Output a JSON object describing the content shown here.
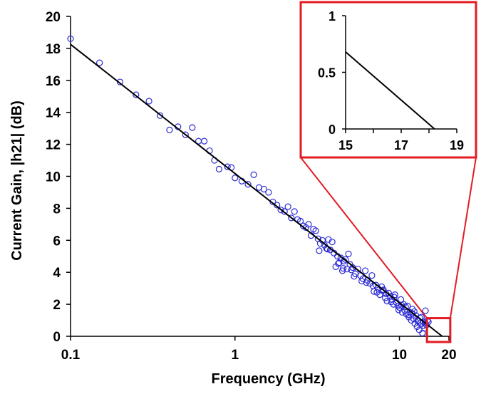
{
  "chart_data": [
    {
      "type": "scatter",
      "xlabel": "Frequency (GHz)",
      "ylabel": "Current Gain, |h21| (dB)",
      "x_scale": "log",
      "xlim": [
        0.1,
        20
      ],
      "ylim": [
        0,
        20
      ],
      "x_ticks": [
        0.1,
        1,
        10,
        20
      ],
      "x_tick_labels": [
        "0.1",
        "1",
        "10",
        "20"
      ],
      "y_ticks": [
        0,
        2,
        4,
        6,
        8,
        10,
        12,
        14,
        16,
        18,
        20
      ],
      "y_tick_labels": [
        "0",
        "2",
        "4",
        "6",
        "8",
        "10",
        "12",
        "14",
        "16",
        "18",
        "20"
      ],
      "grid": false,
      "colors": {
        "measured": "#2b2bd6",
        "fit": "#000000",
        "zoom": "#e31b23"
      },
      "series": [
        {
          "kind": "markers",
          "marker": "open-circle",
          "points": [
            [
              0.1,
              18.6
            ],
            [
              0.15,
              17.1
            ],
            [
              0.2,
              15.9
            ],
            [
              0.25,
              15.1
            ],
            [
              0.3,
              14.7
            ],
            [
              0.35,
              13.8
            ],
            [
              0.4,
              12.9
            ],
            [
              0.45,
              13.1
            ],
            [
              0.5,
              12.6
            ],
            [
              0.55,
              13.05
            ],
            [
              0.6,
              12.2
            ],
            [
              0.65,
              12.2
            ],
            [
              0.7,
              11.6
            ],
            [
              0.75,
              11.0
            ],
            [
              0.8,
              10.45
            ],
            [
              0.9,
              10.6
            ],
            [
              0.95,
              10.55
            ],
            [
              1.0,
              9.9
            ],
            [
              1.1,
              9.7
            ],
            [
              1.2,
              9.5
            ],
            [
              1.3,
              10.1
            ],
            [
              1.4,
              9.3
            ],
            [
              1.5,
              9.2
            ],
            [
              1.6,
              9.0
            ],
            [
              1.7,
              8.4
            ],
            [
              1.8,
              8.2
            ],
            [
              1.9,
              7.9
            ],
            [
              2.0,
              7.8
            ],
            [
              2.1,
              8.1
            ],
            [
              2.2,
              7.4
            ],
            [
              2.3,
              7.8
            ],
            [
              2.4,
              7.3
            ],
            [
              2.5,
              7.2
            ],
            [
              2.6,
              6.9
            ],
            [
              2.7,
              6.8
            ],
            [
              2.8,
              7.0
            ],
            [
              2.9,
              6.3
            ],
            [
              3.0,
              6.7
            ],
            [
              3.1,
              6.6
            ],
            [
              3.2,
              6.1
            ],
            [
              3.3,
              5.8
            ],
            [
              3.4,
              6.0
            ],
            [
              3.5,
              5.7
            ],
            [
              3.6,
              5.5
            ],
            [
              3.7,
              6.05
            ],
            [
              3.8,
              5.4
            ],
            [
              3.9,
              5.9
            ],
            [
              4.0,
              5.2
            ],
            [
              4.1,
              4.35
            ],
            [
              4.2,
              5.0
            ],
            [
              4.3,
              4.6
            ],
            [
              4.4,
              4.9
            ],
            [
              4.5,
              4.1
            ],
            [
              4.6,
              4.7
            ],
            [
              4.7,
              4.8
            ],
            [
              4.8,
              4.2
            ],
            [
              4.9,
              5.15
            ],
            [
              5.0,
              4.5
            ],
            [
              5.2,
              4.3
            ],
            [
              5.4,
              3.9
            ],
            [
              5.6,
              4.2
            ],
            [
              5.8,
              3.8
            ],
            [
              6.0,
              3.6
            ],
            [
              6.2,
              4.1
            ],
            [
              6.4,
              3.5
            ],
            [
              6.6,
              3.3
            ],
            [
              6.8,
              3.8
            ],
            [
              7.0,
              2.8
            ],
            [
              7.2,
              3.2
            ],
            [
              7.4,
              3.0
            ],
            [
              7.6,
              2.6
            ],
            [
              7.8,
              3.1
            ],
            [
              8.0,
              2.9
            ],
            [
              8.2,
              2.4
            ],
            [
              8.4,
              2.2
            ],
            [
              8.6,
              2.7
            ],
            [
              8.8,
              2.5
            ],
            [
              9.0,
              2.3
            ],
            [
              9.2,
              2.0
            ],
            [
              9.4,
              2.6
            ],
            [
              9.6,
              2.1
            ],
            [
              9.8,
              1.9
            ],
            [
              10.0,
              1.8
            ],
            [
              10.2,
              2.3
            ],
            [
              10.4,
              1.5
            ],
            [
              10.6,
              2.0
            ],
            [
              10.8,
              1.6
            ],
            [
              11.0,
              1.4
            ],
            [
              11.2,
              1.9
            ],
            [
              11.4,
              1.2
            ],
            [
              11.6,
              1.5
            ],
            [
              11.8,
              1.0
            ],
            [
              12.0,
              1.7
            ],
            [
              12.2,
              1.1
            ],
            [
              12.4,
              0.8
            ],
            [
              12.6,
              1.3
            ],
            [
              12.8,
              0.6
            ],
            [
              13.0,
              1.0
            ],
            [
              13.2,
              0.4
            ],
            [
              13.4,
              0.8
            ],
            [
              13.6,
              1.2
            ],
            [
              13.8,
              0.2
            ],
            [
              14.0,
              0.9
            ],
            [
              14.2,
              0.5
            ],
            [
              14.4,
              1.6
            ],
            [
              14.6,
              0.7
            ],
            [
              14.8,
              1.0
            ],
            [
              15.0,
              0.9
            ],
            [
              3.25,
              5.35
            ],
            [
              3.65,
              5.45
            ],
            [
              4.25,
              4.55
            ],
            [
              4.55,
              4.25
            ],
            [
              5.1,
              4.15
            ],
            [
              5.3,
              3.75
            ],
            [
              5.9,
              3.45
            ],
            [
              6.3,
              3.35
            ],
            [
              6.9,
              3.15
            ],
            [
              7.3,
              2.75
            ],
            [
              7.9,
              2.85
            ],
            [
              8.3,
              2.65
            ],
            [
              8.9,
              2.15
            ],
            [
              9.3,
              2.45
            ],
            [
              9.9,
              1.65
            ],
            [
              10.3,
              1.95
            ],
            [
              10.9,
              1.85
            ],
            [
              11.3,
              1.35
            ],
            [
              11.9,
              1.45
            ],
            [
              12.3,
              1.55
            ],
            [
              12.9,
              0.95
            ],
            [
              13.3,
              1.15
            ],
            [
              13.9,
              0.65
            ],
            [
              14.3,
              0.85
            ]
          ]
        },
        {
          "kind": "line",
          "points": [
            [
              0.1,
              18.25
            ],
            [
              18.2,
              0.0
            ]
          ]
        }
      ],
      "zoom_box": {
        "xlim": [
          15,
          19
        ],
        "ylim": [
          0,
          1
        ]
      }
    },
    {
      "type": "line",
      "xlim": [
        15,
        19
      ],
      "ylim": [
        0,
        1
      ],
      "x_ticks": [
        15,
        16,
        17,
        18,
        19
      ],
      "x_tick_labels": [
        "15",
        "",
        "17",
        "",
        "19"
      ],
      "y_ticks": [
        0,
        0.5,
        1
      ],
      "y_tick_labels": [
        "0",
        "0.5",
        "1"
      ],
      "series": [
        {
          "points": [
            [
              15,
              0.68
            ],
            [
              18.2,
              0.0
            ]
          ]
        }
      ]
    }
  ]
}
